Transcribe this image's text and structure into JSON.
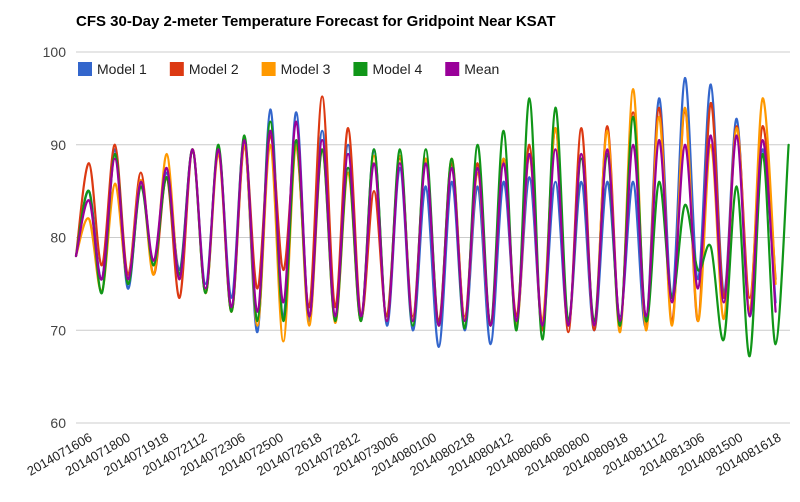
{
  "chart_data": {
    "type": "line",
    "title": "CFS 30-Day 2-meter Temperature Forecast for Gridpoint Near KSAT",
    "xlabel": "",
    "ylabel": "",
    "ylim": [
      60,
      100
    ],
    "yticks": [
      60,
      70,
      80,
      90,
      100
    ],
    "grid": true,
    "legend_position": "top-left",
    "x_tick_labels": [
      "2014071606",
      "2014071800",
      "2014071918",
      "2014072112",
      "2014072306",
      "2014072500",
      "2014072618",
      "2014072812",
      "2014073006",
      "2014080100",
      "2014080218",
      "2014080412",
      "2014080606",
      "2014080800",
      "2014080918",
      "2014081112",
      "2014081306",
      "2014081500",
      "2014081618"
    ],
    "x_range_hours": [
      0,
      744
    ],
    "series": [
      {
        "name": "Model 1",
        "color": "#3366cc",
        "peaks": [
          85,
          89.5,
          86,
          87,
          89.5,
          89.5,
          90.5,
          93.8,
          93.5,
          91.5,
          90,
          89.5,
          87.5,
          85.5,
          86,
          85.5,
          86,
          86.5,
          86,
          86,
          86,
          86,
          95,
          97.2,
          96.5,
          92.8,
          89.5
        ],
        "troughs": [
          78,
          75.5,
          74.5,
          77,
          76.5,
          75,
          73.5,
          69.8,
          71.5,
          71,
          71,
          71,
          70.5,
          70,
          68.2,
          70,
          68.5,
          71,
          70.5,
          70.5,
          70,
          71.5,
          70.5,
          73.5,
          75.5,
          74,
          71.5,
          73
        ]
      },
      {
        "name": "Model 2",
        "color": "#dc3912",
        "peaks": [
          88,
          90,
          87,
          86.5,
          89.5,
          89.5,
          90,
          91,
          90,
          95.2,
          91.8,
          85,
          88.5,
          88.5,
          88,
          88,
          88.5,
          90,
          91.8,
          91.8,
          92,
          93.5,
          94,
          93.5,
          94.5,
          92,
          92
        ],
        "troughs": [
          78,
          77,
          76,
          76,
          73.5,
          74,
          72,
          74.5,
          76.5,
          72.5,
          72.5,
          71.5,
          71.5,
          71.5,
          71,
          71.5,
          70.5,
          71.5,
          70,
          69.8,
          70,
          70.5,
          70.5,
          71,
          71,
          73.5,
          73.5,
          75.5
        ]
      },
      {
        "name": "Model 3",
        "color": "#ff9900",
        "peaks": [
          82,
          85.8,
          86.2,
          89,
          89.5,
          89,
          90,
          90,
          90,
          89.5,
          87,
          88.8,
          88.8,
          88.5,
          88.5,
          87,
          88.5,
          88.8,
          91.8,
          89,
          91.5,
          96,
          93,
          94,
          90,
          91.8,
          95
        ],
        "troughs": [
          78,
          74.2,
          75.5,
          76,
          75.5,
          74,
          72,
          70.5,
          68.8,
          70.5,
          70.8,
          71,
          71,
          71,
          70.5,
          71,
          70.5,
          70.5,
          71,
          70.5,
          70.5,
          69.8,
          70,
          70.5,
          71,
          71.2,
          72,
          75
        ]
      },
      {
        "name": "Model 4",
        "color": "#109618",
        "peaks": [
          85,
          89,
          85.5,
          86.5,
          89.5,
          90,
          91,
          92.5,
          90.5,
          89.5,
          87.5,
          89.5,
          89.5,
          89.5,
          88.5,
          90,
          91.5,
          95,
          94,
          88.5,
          89,
          93,
          86,
          83.5,
          79,
          85.5,
          89,
          90
        ],
        "troughs": [
          78,
          74,
          75,
          77,
          76,
          74,
          72,
          71,
          71,
          71.5,
          71,
          71,
          71,
          70.5,
          70.5,
          70.2,
          70.5,
          70,
          69,
          71,
          71,
          70.5,
          71,
          73.5,
          76.5,
          69,
          67.2,
          68.5
        ]
      },
      {
        "name": "Mean",
        "color": "#990099",
        "peaks": [
          84,
          88.5,
          86,
          87.5,
          89.5,
          89.5,
          90.5,
          91.5,
          92.5,
          90.5,
          89,
          88,
          88,
          88,
          87.5,
          87.5,
          88,
          89,
          89.5,
          89,
          89.5,
          90,
          90.5,
          90,
          91,
          91,
          90.5
        ],
        "troughs": [
          78,
          75.5,
          75.5,
          77.5,
          75.5,
          74.5,
          72.5,
          72,
          73,
          71.5,
          71.5,
          71.5,
          71,
          71,
          70.5,
          71,
          70.5,
          71,
          70.5,
          70.5,
          70.5,
          71,
          71.5,
          73,
          74.5,
          73,
          71.5,
          72
        ]
      }
    ]
  }
}
